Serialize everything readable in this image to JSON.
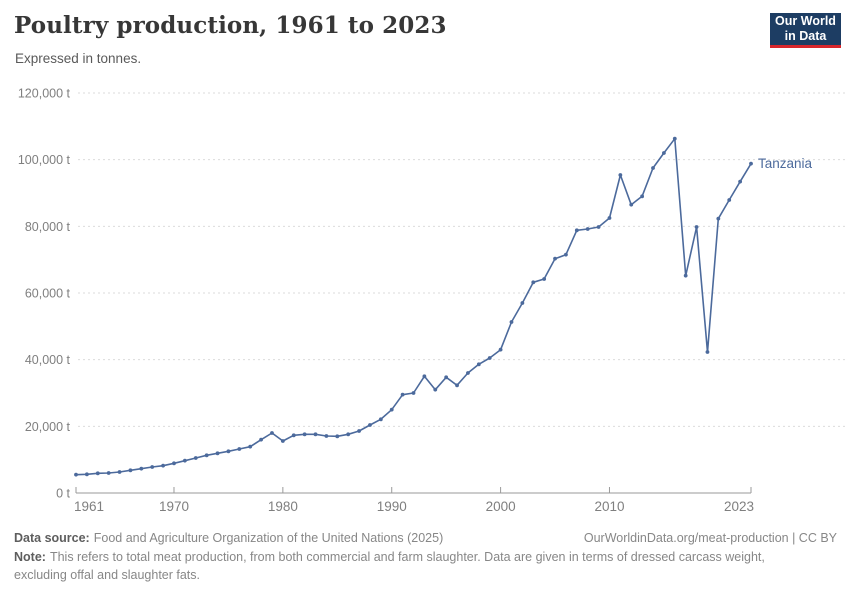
{
  "header": {
    "title": "Poultry production, 1961 to 2023",
    "subtitle": "Expressed in tonnes."
  },
  "logo": {
    "line1": "Our World",
    "line2": "in Data"
  },
  "footer": {
    "data_source_label": "Data source:",
    "data_source_text": "Food and Agriculture Organization of the United Nations (2025)",
    "link_text": "OurWorldinData.org/meat-production | CC BY",
    "note_label": "Note:",
    "note_text": "This refers to total meat production, from both commercial and farm slaughter. Data are given in terms of dressed carcass weight, excluding offal and slaughter fats."
  },
  "chart_data": {
    "type": "line",
    "title": "Poultry production, 1961 to 2023",
    "subtitle": "Expressed in tonnes.",
    "xlabel": "",
    "ylabel": "",
    "unit": "t",
    "xlim": [
      1961,
      2023
    ],
    "ylim": [
      0,
      120000
    ],
    "x_ticks": [
      1961,
      1970,
      1980,
      1990,
      2000,
      2010,
      2023
    ],
    "y_ticks": [
      0,
      20000,
      40000,
      60000,
      80000,
      100000,
      120000
    ],
    "y_tick_suffix": " t",
    "grid": "horizontal-dashed",
    "legend_position": "end-of-line",
    "x": [
      1961,
      1962,
      1963,
      1964,
      1965,
      1966,
      1967,
      1968,
      1969,
      1970,
      1971,
      1972,
      1973,
      1974,
      1975,
      1976,
      1977,
      1978,
      1979,
      1980,
      1981,
      1982,
      1983,
      1984,
      1985,
      1986,
      1987,
      1988,
      1989,
      1990,
      1991,
      1992,
      1993,
      1994,
      1995,
      1996,
      1997,
      1998,
      1999,
      2000,
      2001,
      2002,
      2003,
      2004,
      2005,
      2006,
      2007,
      2008,
      2009,
      2010,
      2011,
      2012,
      2013,
      2014,
      2015,
      2016,
      2017,
      2018,
      2019,
      2020,
      2021,
      2022,
      2023
    ],
    "series": [
      {
        "name": "Tanzania",
        "color": "#4c6a9c",
        "values": [
          5500,
          5600,
          5900,
          6000,
          6300,
          6800,
          7300,
          7800,
          8200,
          8900,
          9700,
          10500,
          11300,
          11900,
          12500,
          13200,
          13900,
          16000,
          18000,
          15600,
          17300,
          17600,
          17600,
          17100,
          17000,
          17600,
          18600,
          20400,
          22100,
          25000,
          29500,
          30000,
          35000,
          31000,
          34700,
          32300,
          36000,
          38600,
          40500,
          43000,
          51300,
          57000,
          63200,
          64200,
          70300,
          71500,
          78800,
          79200,
          79800,
          82500,
          95400,
          86500,
          89000,
          97500,
          102000,
          106300,
          65200,
          79800,
          42300,
          82300,
          87900,
          93400,
          98800
        ]
      }
    ],
    "colors": {
      "line": "#4c6a9c",
      "grid": "#dbdbdb",
      "axis": "#9a9a9a",
      "tick_text": "#7f7f7f"
    }
  }
}
